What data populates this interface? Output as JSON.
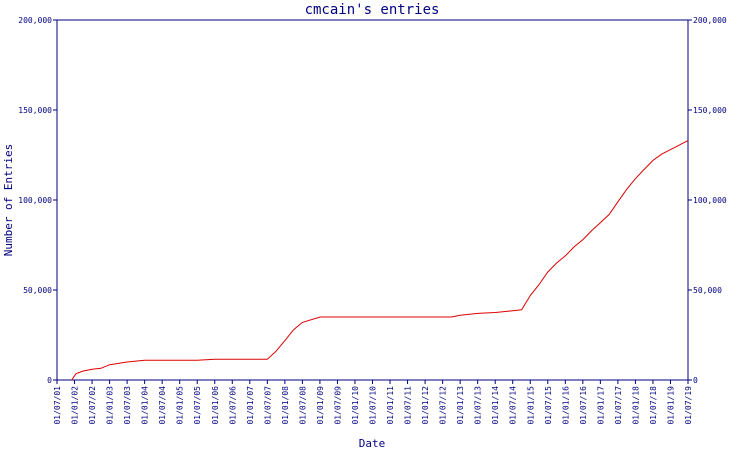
{
  "chart_data": {
    "type": "line",
    "title": "cmcain's entries",
    "xlabel": "Date",
    "ylabel": "Number of Entries",
    "ylim": [
      0,
      200000
    ],
    "xlim": [
      "2001-07-01",
      "2019-07-01"
    ],
    "y_ticks": [
      "0",
      "50,000",
      "100,000",
      "150,000",
      "200,000"
    ],
    "y_tick_values": [
      0,
      50000,
      100000,
      150000,
      200000
    ],
    "y_axis_right": true,
    "grid": false,
    "colors": {
      "axis": "#000080",
      "line": "#dd0000",
      "background": "#ffffff"
    },
    "x_ticks": [
      "01/07/01",
      "01/01/02",
      "01/07/02",
      "01/01/03",
      "01/07/03",
      "01/01/04",
      "01/07/04",
      "01/01/05",
      "01/07/05",
      "01/01/06",
      "01/07/06",
      "01/01/07",
      "01/07/07",
      "01/01/08",
      "01/07/08",
      "01/01/09",
      "01/07/09",
      "01/01/10",
      "01/07/10",
      "01/01/11",
      "01/07/11",
      "01/01/12",
      "01/07/12",
      "01/01/13",
      "01/07/13",
      "01/01/14",
      "01/07/14",
      "01/01/15",
      "01/07/15",
      "01/01/16",
      "01/07/16",
      "01/01/17",
      "01/07/17",
      "01/01/18",
      "01/07/18",
      "01/01/19",
      "01/07/19"
    ],
    "series": [
      {
        "x": [
          "2001-12-01",
          "2002-01-15",
          "2002-04-01",
          "2002-07-01",
          "2002-10-01",
          "2003-01-01",
          "2003-07-01",
          "2004-01-01",
          "2005-07-01",
          "2006-01-01",
          "2007-07-01",
          "2007-10-01",
          "2008-01-01",
          "2008-04-01",
          "2008-07-01",
          "2009-01-01",
          "2009-07-01",
          "2010-07-01",
          "2011-07-01",
          "2012-07-01",
          "2012-10-01",
          "2013-01-01",
          "2013-07-01",
          "2014-01-01",
          "2014-07-01",
          "2014-10-01",
          "2015-01-01",
          "2015-04-01",
          "2015-07-01",
          "2015-10-01",
          "2016-01-01",
          "2016-04-01",
          "2016-07-01",
          "2016-10-01",
          "2017-01-01",
          "2017-04-01",
          "2017-07-01",
          "2017-10-01",
          "2018-01-01",
          "2018-04-01",
          "2018-07-01",
          "2018-10-01",
          "2019-01-01",
          "2019-04-01",
          "2019-07-01"
        ],
        "values": [
          0,
          3500,
          5000,
          6000,
          6500,
          8500,
          10000,
          11000,
          11000,
          11500,
          11500,
          16000,
          22000,
          28000,
          32000,
          35000,
          35000,
          35000,
          35000,
          35000,
          35000,
          36000,
          37000,
          37500,
          38500,
          39000,
          47000,
          53000,
          60000,
          65000,
          69000,
          74000,
          78000,
          83000,
          87500,
          92000,
          99000,
          106000,
          112000,
          117000,
          122000,
          125500,
          128000,
          130500,
          133000
        ]
      }
    ]
  }
}
